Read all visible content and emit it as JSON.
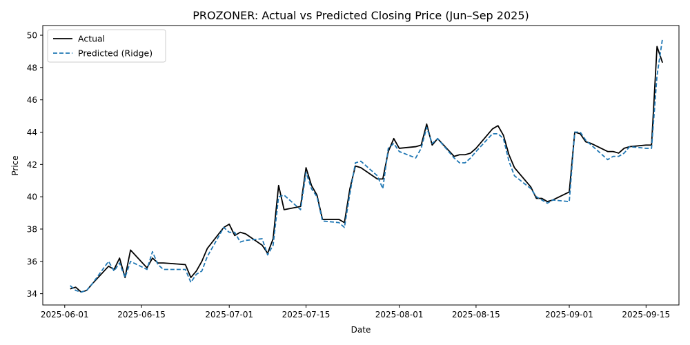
{
  "chart_data": {
    "type": "line",
    "title": "PROZONER: Actual vs Predicted Closing Price (Jun–Sep 2025)",
    "xlabel": "Date",
    "ylabel": "Price",
    "ylim": [
      33.3,
      50.6
    ],
    "xlim": [
      "2025-05-28",
      "2025-09-21"
    ],
    "x_ticks": [
      {
        "date": "2025-06-01",
        "label": "2025-06-01"
      },
      {
        "date": "2025-06-15",
        "label": "2025-06-15"
      },
      {
        "date": "2025-07-01",
        "label": "2025-07-01"
      },
      {
        "date": "2025-07-15",
        "label": "2025-07-15"
      },
      {
        "date": "2025-08-01",
        "label": "2025-08-01"
      },
      {
        "date": "2025-08-15",
        "label": "2025-08-15"
      },
      {
        "date": "2025-09-01",
        "label": "2025-09-01"
      },
      {
        "date": "2025-09-15",
        "label": "2025-09-15"
      }
    ],
    "y_ticks": [
      {
        "value": 34,
        "label": "34"
      },
      {
        "value": 36,
        "label": "36"
      },
      {
        "value": 38,
        "label": "38"
      },
      {
        "value": 40,
        "label": "40"
      },
      {
        "value": 42,
        "label": "42"
      },
      {
        "value": 44,
        "label": "44"
      },
      {
        "value": 46,
        "label": "46"
      },
      {
        "value": 48,
        "label": "48"
      },
      {
        "value": 50,
        "label": "50"
      }
    ],
    "grid": false,
    "legend_position": "top-left",
    "x": [
      "2025-06-02",
      "2025-06-03",
      "2025-06-04",
      "2025-06-05",
      "2025-06-06",
      "2025-06-09",
      "2025-06-10",
      "2025-06-11",
      "2025-06-12",
      "2025-06-13",
      "2025-06-16",
      "2025-06-17",
      "2025-06-18",
      "2025-06-19",
      "2025-06-23",
      "2025-06-24",
      "2025-06-25",
      "2025-06-26",
      "2025-06-27",
      "2025-06-30",
      "2025-07-01",
      "2025-07-02",
      "2025-07-03",
      "2025-07-04",
      "2025-07-07",
      "2025-07-08",
      "2025-07-09",
      "2025-07-10",
      "2025-07-11",
      "2025-07-14",
      "2025-07-15",
      "2025-07-16",
      "2025-07-17",
      "2025-07-18",
      "2025-07-21",
      "2025-07-22",
      "2025-07-23",
      "2025-07-24",
      "2025-07-25",
      "2025-07-28",
      "2025-07-29",
      "2025-07-30",
      "2025-07-31",
      "2025-08-01",
      "2025-08-04",
      "2025-08-05",
      "2025-08-06",
      "2025-08-07",
      "2025-08-08",
      "2025-08-11",
      "2025-08-12",
      "2025-08-13",
      "2025-08-14",
      "2025-08-15",
      "2025-08-18",
      "2025-08-19",
      "2025-08-20",
      "2025-08-21",
      "2025-08-22",
      "2025-08-25",
      "2025-08-26",
      "2025-08-27",
      "2025-08-28",
      "2025-08-29",
      "2025-09-01",
      "2025-09-02",
      "2025-09-03",
      "2025-09-04",
      "2025-09-05",
      "2025-09-08",
      "2025-09-09",
      "2025-09-10",
      "2025-09-11",
      "2025-09-12",
      "2025-09-15",
      "2025-09-16",
      "2025-09-17",
      "2025-09-18"
    ],
    "series": [
      {
        "name": "Actual",
        "color": "#000000",
        "dash": "solid",
        "values": [
          34.3,
          34.4,
          34.1,
          34.2,
          34.6,
          35.7,
          35.5,
          36.2,
          35.0,
          36.7,
          35.6,
          36.2,
          35.9,
          35.9,
          35.8,
          35.0,
          35.4,
          36.0,
          36.8,
          38.1,
          38.3,
          37.6,
          37.8,
          37.7,
          37.0,
          36.5,
          37.4,
          40.7,
          39.2,
          39.4,
          41.8,
          40.7,
          40.1,
          38.6,
          38.6,
          38.4,
          40.5,
          41.9,
          41.8,
          41.1,
          41.1,
          42.8,
          43.6,
          43.0,
          43.1,
          43.2,
          44.5,
          43.2,
          43.6,
          42.5,
          42.6,
          42.6,
          42.7,
          43.0,
          44.2,
          44.4,
          43.8,
          42.6,
          41.8,
          40.6,
          39.9,
          39.9,
          39.7,
          39.8,
          40.3,
          44.0,
          43.9,
          43.4,
          43.3,
          42.8,
          42.8,
          42.7,
          43.0,
          43.1,
          43.2,
          43.2,
          49.3,
          48.3
        ]
      },
      {
        "name": "Predicted (Ridge)",
        "color": "#1f77b4",
        "dash": "dashed",
        "values": [
          34.5,
          34.2,
          34.1,
          34.2,
          34.6,
          36.0,
          35.4,
          35.9,
          35.0,
          36.0,
          35.5,
          36.6,
          35.8,
          35.5,
          35.5,
          34.7,
          35.2,
          35.4,
          36.3,
          38.1,
          37.8,
          37.8,
          37.2,
          37.3,
          37.4,
          36.4,
          37.0,
          40.0,
          40.1,
          39.2,
          41.5,
          40.5,
          40.0,
          38.5,
          38.4,
          38.1,
          40.2,
          42.1,
          42.2,
          41.3,
          40.5,
          43.0,
          43.3,
          42.8,
          42.4,
          43.0,
          44.3,
          43.3,
          43.6,
          42.4,
          42.1,
          42.1,
          42.4,
          42.8,
          43.9,
          43.9,
          43.6,
          42.2,
          41.3,
          40.5,
          40.0,
          39.8,
          39.6,
          39.8,
          39.7,
          44.0,
          44.0,
          43.5,
          43.2,
          42.3,
          42.5,
          42.5,
          42.7,
          43.1,
          43.0,
          43.0,
          47.5,
          49.8
        ]
      }
    ]
  }
}
